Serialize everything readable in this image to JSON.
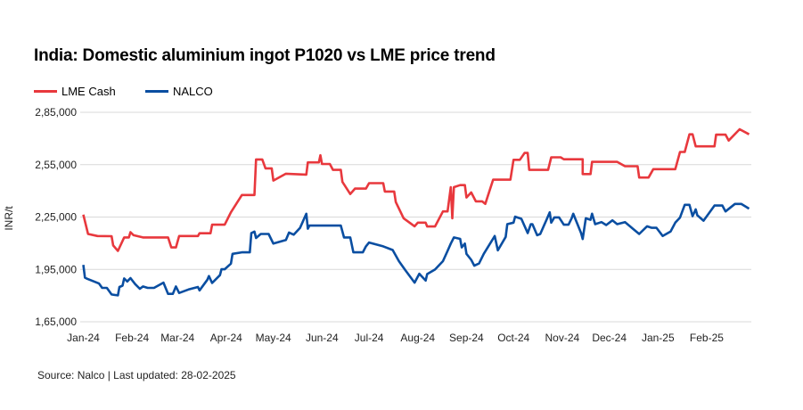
{
  "chart_data": {
    "type": "line",
    "title": "India: Domestic aluminium ingot P1020 vs LME price trend",
    "ylabel": "INR/t",
    "xlabel": "",
    "ylim": [
      165000,
      285000
    ],
    "xlim": [
      "2024-01-01",
      "2025-02-28"
    ],
    "yticks": [
      "1,65,000",
      "1,95,000",
      "2,25,000",
      "2,55,000",
      "2,85,000"
    ],
    "ytick_values": [
      165000,
      195000,
      225000,
      255000,
      285000
    ],
    "xticks": [
      "Jan-24",
      "Feb-24",
      "Mar-24",
      "Apr-24",
      "May-24",
      "Jun-24",
      "Jul-24",
      "Aug-24",
      "Sep-24",
      "Oct-24",
      "Nov-24",
      "Dec-24",
      "Jan-25",
      "Feb-25"
    ],
    "xtick_dates": [
      "2024-01-01",
      "2024-02-01",
      "2024-03-01",
      "2024-04-01",
      "2024-05-01",
      "2024-06-01",
      "2024-07-01",
      "2024-08-01",
      "2024-09-01",
      "2024-10-01",
      "2024-11-01",
      "2024-12-01",
      "2025-01-01",
      "2025-02-01"
    ],
    "grid": true,
    "legend_position": "top-left",
    "series": [
      {
        "name": "LME Cash",
        "color": "#e8383d",
        "points": [
          [
            "2024-01-01",
            226400
          ],
          [
            "2024-01-04",
            215300
          ],
          [
            "2024-01-10",
            214100
          ],
          [
            "2024-01-19",
            214000
          ],
          [
            "2024-01-20",
            208700
          ],
          [
            "2024-01-23",
            205600
          ],
          [
            "2024-01-27",
            213300
          ],
          [
            "2024-01-30",
            213300
          ],
          [
            "2024-01-31",
            216300
          ],
          [
            "2024-02-02",
            214600
          ],
          [
            "2024-02-08",
            213300
          ],
          [
            "2024-02-24",
            213300
          ],
          [
            "2024-02-26",
            207600
          ],
          [
            "2024-02-29",
            207600
          ],
          [
            "2024-03-02",
            214100
          ],
          [
            "2024-03-14",
            214100
          ],
          [
            "2024-03-15",
            215700
          ],
          [
            "2024-03-22",
            215700
          ],
          [
            "2024-03-23",
            220600
          ],
          [
            "2024-03-31",
            220600
          ],
          [
            "2024-04-04",
            227700
          ],
          [
            "2024-04-11",
            237600
          ],
          [
            "2024-04-19",
            237600
          ],
          [
            "2024-04-20",
            258000
          ],
          [
            "2024-04-24",
            258000
          ],
          [
            "2024-04-26",
            252900
          ],
          [
            "2024-04-30",
            252900
          ],
          [
            "2024-05-01",
            245900
          ],
          [
            "2024-05-09",
            249800
          ],
          [
            "2024-05-22",
            249300
          ],
          [
            "2024-05-23",
            256300
          ],
          [
            "2024-05-30",
            256300
          ],
          [
            "2024-05-31",
            260400
          ],
          [
            "2024-06-01",
            255400
          ],
          [
            "2024-06-06",
            255400
          ],
          [
            "2024-06-08",
            252000
          ],
          [
            "2024-06-13",
            252000
          ],
          [
            "2024-06-14",
            245100
          ],
          [
            "2024-06-19",
            238200
          ],
          [
            "2024-06-22",
            241300
          ],
          [
            "2024-06-29",
            241300
          ],
          [
            "2024-07-01",
            244400
          ],
          [
            "2024-07-10",
            244400
          ],
          [
            "2024-07-11",
            239600
          ],
          [
            "2024-07-17",
            239600
          ],
          [
            "2024-07-18",
            233600
          ],
          [
            "2024-07-23",
            224300
          ],
          [
            "2024-07-30",
            219700
          ],
          [
            "2024-08-01",
            221800
          ],
          [
            "2024-08-06",
            221800
          ],
          [
            "2024-08-07",
            219600
          ],
          [
            "2024-08-12",
            219600
          ],
          [
            "2024-08-17",
            228200
          ],
          [
            "2024-08-20",
            228200
          ],
          [
            "2024-08-22",
            242100
          ],
          [
            "2024-08-23",
            224300
          ],
          [
            "2024-08-24",
            242100
          ],
          [
            "2024-08-28",
            243300
          ],
          [
            "2024-08-31",
            243300
          ],
          [
            "2024-09-01",
            236200
          ],
          [
            "2024-09-04",
            239100
          ],
          [
            "2024-09-07",
            234000
          ],
          [
            "2024-09-11",
            234000
          ],
          [
            "2024-09-13",
            232500
          ],
          [
            "2024-09-18",
            246400
          ],
          [
            "2024-09-29",
            246400
          ],
          [
            "2024-10-01",
            257800
          ],
          [
            "2024-10-05",
            257800
          ],
          [
            "2024-10-08",
            261700
          ],
          [
            "2024-10-10",
            261700
          ],
          [
            "2024-10-11",
            252000
          ],
          [
            "2024-10-23",
            252000
          ],
          [
            "2024-10-25",
            259200
          ],
          [
            "2024-10-31",
            259200
          ],
          [
            "2024-11-02",
            258100
          ],
          [
            "2024-11-14",
            258100
          ],
          [
            "2024-11-14",
            249600
          ],
          [
            "2024-11-19",
            249600
          ],
          [
            "2024-11-20",
            256600
          ],
          [
            "2024-12-06",
            256600
          ],
          [
            "2024-12-11",
            254100
          ],
          [
            "2024-12-19",
            254100
          ],
          [
            "2024-12-20",
            247600
          ],
          [
            "2024-12-26",
            247600
          ],
          [
            "2024-12-29",
            252400
          ],
          [
            "2025-01-12",
            252400
          ],
          [
            "2025-01-15",
            262300
          ],
          [
            "2025-01-18",
            262300
          ],
          [
            "2025-01-21",
            272400
          ],
          [
            "2025-01-23",
            272400
          ],
          [
            "2025-01-25",
            265500
          ],
          [
            "2025-02-06",
            265500
          ],
          [
            "2025-02-07",
            272200
          ],
          [
            "2025-02-13",
            272200
          ],
          [
            "2025-02-15",
            268800
          ],
          [
            "2025-02-22",
            275300
          ],
          [
            "2025-02-28",
            272400
          ]
        ]
      },
      {
        "name": "NALCO",
        "color": "#0a4ea1",
        "points": [
          [
            "2024-01-01",
            197600
          ],
          [
            "2024-01-02",
            190300
          ],
          [
            "2024-01-03",
            189800
          ],
          [
            "2024-01-11",
            186900
          ],
          [
            "2024-01-13",
            184400
          ],
          [
            "2024-01-16",
            184400
          ],
          [
            "2024-01-19",
            180600
          ],
          [
            "2024-01-23",
            180100
          ],
          [
            "2024-01-24",
            184900
          ],
          [
            "2024-01-26",
            185700
          ],
          [
            "2024-01-27",
            189800
          ],
          [
            "2024-01-29",
            188100
          ],
          [
            "2024-01-31",
            190000
          ],
          [
            "2024-02-03",
            186600
          ],
          [
            "2024-02-06",
            183900
          ],
          [
            "2024-02-08",
            185200
          ],
          [
            "2024-02-11",
            184400
          ],
          [
            "2024-02-15",
            184400
          ],
          [
            "2024-02-21",
            187400
          ],
          [
            "2024-02-24",
            181000
          ],
          [
            "2024-02-27",
            181000
          ],
          [
            "2024-02-29",
            185200
          ],
          [
            "2024-03-02",
            181500
          ],
          [
            "2024-03-08",
            183500
          ],
          [
            "2024-03-14",
            184900
          ],
          [
            "2024-03-15",
            183000
          ],
          [
            "2024-03-20",
            189100
          ],
          [
            "2024-03-21",
            191200
          ],
          [
            "2024-03-23",
            187200
          ],
          [
            "2024-03-28",
            191700
          ],
          [
            "2024-03-29",
            195100
          ],
          [
            "2024-03-31",
            195100
          ],
          [
            "2024-04-04",
            198300
          ],
          [
            "2024-04-05",
            203900
          ],
          [
            "2024-04-11",
            204800
          ],
          [
            "2024-04-16",
            204800
          ],
          [
            "2024-04-17",
            215800
          ],
          [
            "2024-04-19",
            216700
          ],
          [
            "2024-04-20",
            213000
          ],
          [
            "2024-04-23",
            215300
          ],
          [
            "2024-04-28",
            215300
          ],
          [
            "2024-05-01",
            209800
          ],
          [
            "2024-05-09",
            211900
          ],
          [
            "2024-05-11",
            216100
          ],
          [
            "2024-05-14",
            214900
          ],
          [
            "2024-05-18",
            218700
          ],
          [
            "2024-05-22",
            226900
          ],
          [
            "2024-05-23",
            218300
          ],
          [
            "2024-05-24",
            220100
          ],
          [
            "2024-06-13",
            220100
          ],
          [
            "2024-06-15",
            213300
          ],
          [
            "2024-06-19",
            213300
          ],
          [
            "2024-06-21",
            204800
          ],
          [
            "2024-06-27",
            204800
          ],
          [
            "2024-06-29",
            208200
          ],
          [
            "2024-07-01",
            210400
          ],
          [
            "2024-07-10",
            208200
          ],
          [
            "2024-07-16",
            206100
          ],
          [
            "2024-07-20",
            199700
          ],
          [
            "2024-07-24",
            194600
          ],
          [
            "2024-07-30",
            187400
          ],
          [
            "2024-08-02",
            192500
          ],
          [
            "2024-08-03",
            191500
          ],
          [
            "2024-08-06",
            188600
          ],
          [
            "2024-08-07",
            192300
          ],
          [
            "2024-08-12",
            194900
          ],
          [
            "2024-08-17",
            199700
          ],
          [
            "2024-08-20",
            205600
          ],
          [
            "2024-08-22",
            209800
          ],
          [
            "2024-08-24",
            213300
          ],
          [
            "2024-08-28",
            212500
          ],
          [
            "2024-08-29",
            207600
          ],
          [
            "2024-08-31",
            209800
          ],
          [
            "2024-09-01",
            203900
          ],
          [
            "2024-09-04",
            200500
          ],
          [
            "2024-09-06",
            197100
          ],
          [
            "2024-09-09",
            198400
          ],
          [
            "2024-09-12",
            203900
          ],
          [
            "2024-09-19",
            214100
          ],
          [
            "2024-09-21",
            205900
          ],
          [
            "2024-09-26",
            213600
          ],
          [
            "2024-09-27",
            220900
          ],
          [
            "2024-10-01",
            221800
          ],
          [
            "2024-10-02",
            225200
          ],
          [
            "2024-10-06",
            224000
          ],
          [
            "2024-10-10",
            215800
          ],
          [
            "2024-10-12",
            220900
          ],
          [
            "2024-10-13",
            220900
          ],
          [
            "2024-10-16",
            214600
          ],
          [
            "2024-10-18",
            215300
          ],
          [
            "2024-10-22",
            223400
          ],
          [
            "2024-10-24",
            227700
          ],
          [
            "2024-10-25",
            221800
          ],
          [
            "2024-10-27",
            224800
          ],
          [
            "2024-10-30",
            224800
          ],
          [
            "2024-11-02",
            220600
          ],
          [
            "2024-11-05",
            220600
          ],
          [
            "2024-11-07",
            224300
          ],
          [
            "2024-11-08",
            226900
          ],
          [
            "2024-11-13",
            215800
          ],
          [
            "2024-11-14",
            212400
          ],
          [
            "2024-11-16",
            224300
          ],
          [
            "2024-11-19",
            223400
          ],
          [
            "2024-11-20",
            226900
          ],
          [
            "2024-11-22",
            220900
          ],
          [
            "2024-11-26",
            222100
          ],
          [
            "2024-11-29",
            220400
          ],
          [
            "2024-12-03",
            223100
          ],
          [
            "2024-12-06",
            220900
          ],
          [
            "2024-12-11",
            222100
          ],
          [
            "2024-12-16",
            218300
          ],
          [
            "2024-12-20",
            215300
          ],
          [
            "2024-12-25",
            219700
          ],
          [
            "2024-12-28",
            218800
          ],
          [
            "2024-12-31",
            218800
          ],
          [
            "2025-01-04",
            214100
          ],
          [
            "2025-01-09",
            216700
          ],
          [
            "2025-01-12",
            221800
          ],
          [
            "2025-01-15",
            224700
          ],
          [
            "2025-01-18",
            232000
          ],
          [
            "2025-01-21",
            232000
          ],
          [
            "2025-01-23",
            225500
          ],
          [
            "2025-01-25",
            229400
          ],
          [
            "2025-01-26",
            226000
          ],
          [
            "2025-01-30",
            222900
          ],
          [
            "2025-02-06",
            231600
          ],
          [
            "2025-02-11",
            231600
          ],
          [
            "2025-02-13",
            228200
          ],
          [
            "2025-02-19",
            232500
          ],
          [
            "2025-02-23",
            232500
          ],
          [
            "2025-02-28",
            229800
          ]
        ]
      }
    ]
  },
  "source": "Source: Nalco | Last updated: 28-02-2025"
}
